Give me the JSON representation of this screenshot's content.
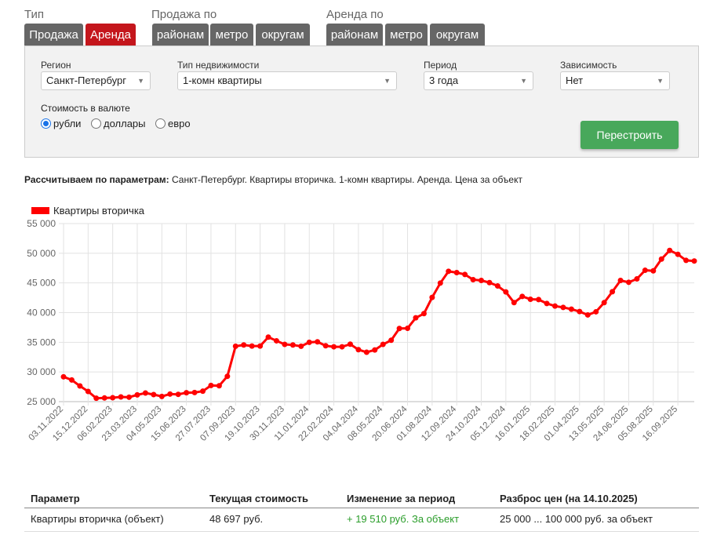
{
  "groups": {
    "type": "Тип",
    "sale_by": "Продажа по",
    "rent_by": "Аренда по"
  },
  "tabs": {
    "type": [
      {
        "label": "Продажа",
        "active": false
      },
      {
        "label": "Аренда",
        "active": true
      }
    ],
    "sale_by": [
      {
        "label": "районам"
      },
      {
        "label": "метро"
      },
      {
        "label": "округам"
      }
    ],
    "rent_by": [
      {
        "label": "районам"
      },
      {
        "label": "метро"
      },
      {
        "label": "округам"
      }
    ]
  },
  "filters": {
    "region": {
      "label": "Регион",
      "value": "Санкт-Петербург"
    },
    "property_type": {
      "label": "Тип недвижимости",
      "value": "1-комн квартиры"
    },
    "period": {
      "label": "Период",
      "value": "3 года"
    },
    "dependency": {
      "label": "Зависимость",
      "value": "Нет"
    },
    "currency": {
      "label": "Стоимость в валюте",
      "options": [
        "рубли",
        "доллары",
        "евро"
      ],
      "selected": "рубли"
    },
    "rebuild": "Перестроить"
  },
  "params": {
    "label": "Рассчитываем по параметрам:",
    "text": "Санкт-Петербург. Квартиры вторичка. 1-комн квартиры. Аренда. Цена за объект"
  },
  "colors": {
    "active_tab": "#c4161c",
    "tab": "#666666",
    "button": "#48a85b",
    "series": "#ff0000",
    "positive": "#2a9d2a"
  },
  "chart_data": {
    "type": "line",
    "legend": [
      "Квартиры вторичка"
    ],
    "legend_position": "top-left",
    "ylim": [
      25000,
      55000
    ],
    "y_ticks": [
      "25 000",
      "30 000",
      "35 000",
      "40 000",
      "45 000",
      "50 000",
      "55 000"
    ],
    "x_label_every": 3,
    "x_labels": [
      "03.11.2022",
      "15.12.2022",
      "06.02.2023",
      "23.03.2023",
      "04.05.2023",
      "15.06.2023",
      "27.07.2023",
      "07.09.2023",
      "19.10.2023",
      "30.11.2023",
      "11.01.2024",
      "22.02.2024",
      "04.04.2024",
      "08.05.2024",
      "20.06.2024",
      "01.08.2024",
      "12.09.2024",
      "24.10.2024",
      "05.12.2024",
      "16.01.2025",
      "18.02.2025",
      "01.04.2025",
      "13.05.2025",
      "24.06.2025",
      "05.08.2025",
      "16.09.2025"
    ],
    "series": [
      {
        "name": "Квартиры вторичка",
        "values": [
          29187,
          28650,
          27640,
          26720,
          25570,
          25620,
          25660,
          25790,
          25750,
          26140,
          26450,
          26190,
          25880,
          26280,
          26230,
          26500,
          26540,
          26760,
          27730,
          27680,
          29270,
          34330,
          34550,
          34370,
          34370,
          35870,
          35250,
          34640,
          34550,
          34330,
          34990,
          35080,
          34420,
          34240,
          34240,
          34680,
          33760,
          33320,
          33710,
          34640,
          35340,
          37320,
          37360,
          39120,
          39830,
          42560,
          44980,
          46960,
          46740,
          46430,
          45550,
          45420,
          45060,
          44490,
          43480,
          41680,
          42730,
          42250,
          42200,
          41540,
          41100,
          40880,
          40580,
          40180,
          39610,
          40140,
          41680,
          43520,
          45420,
          45110,
          45680,
          47130,
          47040,
          49020,
          50480,
          49820,
          48800,
          48697
        ]
      }
    ],
    "grid": true
  },
  "table": {
    "headers": [
      "Параметр",
      "Текущая стоимость",
      "Изменение за период",
      "Разброс цен (на 14.10.2025)"
    ],
    "rows": [
      [
        "Квартиры вторичка (объект)",
        "48 697 руб.",
        "+ 19 510 руб. За объект",
        "25 000 ... 100 000 руб. за объект"
      ]
    ]
  }
}
